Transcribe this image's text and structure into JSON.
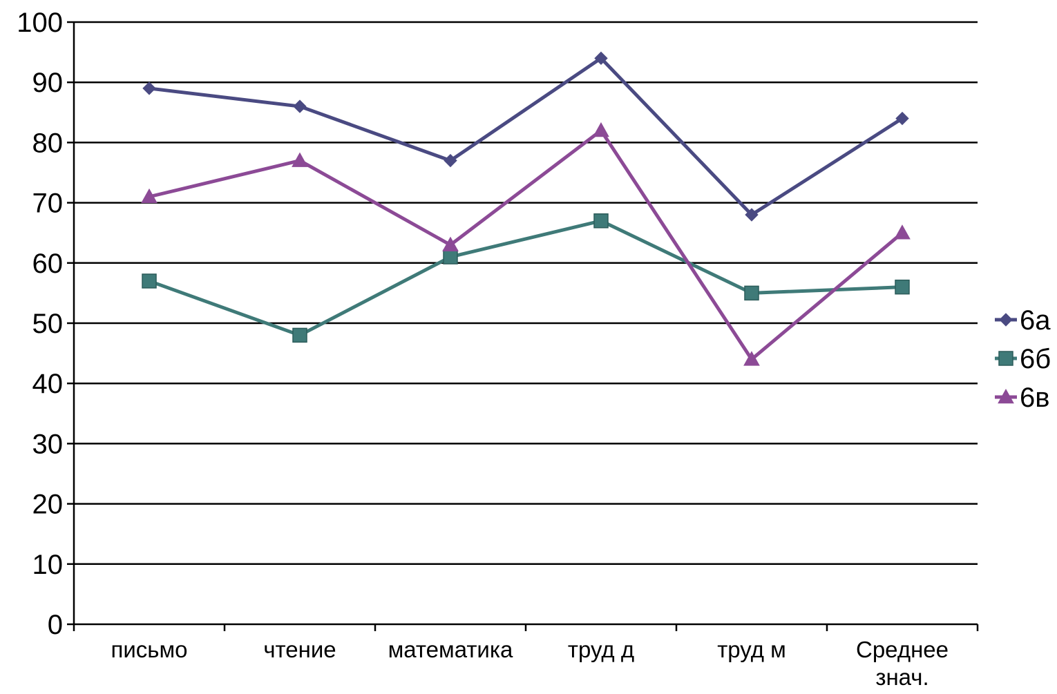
{
  "chart_data": {
    "type": "line",
    "categories": [
      [
        "письмо"
      ],
      [
        "чтение"
      ],
      [
        "математика"
      ],
      [
        "труд д"
      ],
      [
        "труд м"
      ],
      [
        "Среднее",
        "знач."
      ]
    ],
    "series": [
      {
        "name": "6а",
        "values": [
          89,
          86,
          77,
          94,
          68,
          84
        ],
        "color": "#4a4a82",
        "marker": "diamond"
      },
      {
        "name": "6б",
        "values": [
          57,
          48,
          61,
          67,
          55,
          56
        ],
        "color": "#3f7a78",
        "marker": "square"
      },
      {
        "name": "6в",
        "values": [
          71,
          77,
          63,
          82,
          44,
          65
        ],
        "color": "#8c4a96",
        "marker": "triangle"
      }
    ],
    "y_ticks": [
      "0",
      "10",
      "20",
      "30",
      "40",
      "50",
      "60",
      "70",
      "80",
      "90",
      "100"
    ],
    "ylim": [
      0,
      100
    ],
    "grid": true,
    "legend": "right",
    "title": "",
    "xlabel": "",
    "ylabel": ""
  }
}
